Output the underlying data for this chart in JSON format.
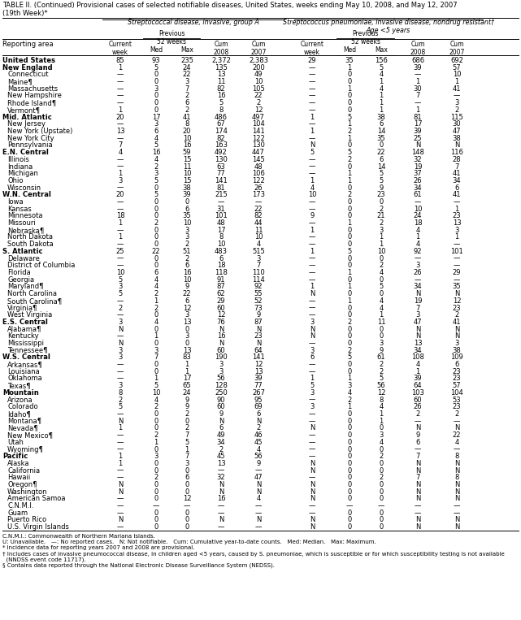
{
  "title": "TABLE II. (Continued) Provisional cases of selected notifiable diseases, United States, weeks ending May 10, 2008, and May 12, 2007\n(19th Week)*",
  "rows": [
    [
      "United States",
      "85",
      "93",
      "235",
      "2,372",
      "2,383",
      "29",
      "35",
      "156",
      "686",
      "692"
    ],
    [
      "New England",
      "1",
      "5",
      "24",
      "135",
      "200",
      "—",
      "1",
      "5",
      "39",
      "57"
    ],
    [
      "Connecticut",
      "—",
      "0",
      "22",
      "13",
      "49",
      "—",
      "0",
      "4",
      "—",
      "10"
    ],
    [
      "Maine¶",
      "—",
      "0",
      "3",
      "11",
      "10",
      "—",
      "0",
      "1",
      "1",
      "1"
    ],
    [
      "Massachusetts",
      "—",
      "3",
      "7",
      "82",
      "105",
      "—",
      "1",
      "4",
      "30",
      "41"
    ],
    [
      "New Hampshire",
      "—",
      "0",
      "2",
      "16",
      "22",
      "—",
      "0",
      "1",
      "7",
      "—"
    ],
    [
      "Rhode Island¶",
      "—",
      "0",
      "6",
      "5",
      "2",
      "—",
      "0",
      "1",
      "—",
      "3"
    ],
    [
      "Vermont¶",
      "1",
      "0",
      "2",
      "8",
      "12",
      "—",
      "0",
      "1",
      "1",
      "2"
    ],
    [
      "Mid. Atlantic",
      "20",
      "17",
      "41",
      "486",
      "497",
      "1",
      "5",
      "38",
      "81",
      "115"
    ],
    [
      "New Jersey",
      "—",
      "3",
      "8",
      "67",
      "104",
      "—",
      "1",
      "6",
      "17",
      "30"
    ],
    [
      "New York (Upstate)",
      "13",
      "6",
      "20",
      "174",
      "141",
      "1",
      "2",
      "14",
      "39",
      "47"
    ],
    [
      "New York City",
      "—",
      "4",
      "10",
      "82",
      "122",
      "—",
      "1",
      "35",
      "25",
      "38"
    ],
    [
      "Pennsylvania",
      "7",
      "5",
      "16",
      "163",
      "130",
      "N",
      "0",
      "0",
      "N",
      "N"
    ],
    [
      "E.N. Central",
      "4",
      "16",
      "59",
      "492",
      "447",
      "5",
      "5",
      "22",
      "148",
      "116"
    ],
    [
      "Illinois",
      "—",
      "4",
      "15",
      "130",
      "145",
      "—",
      "2",
      "6",
      "32",
      "28"
    ],
    [
      "Indiana",
      "—",
      "2",
      "11",
      "63",
      "48",
      "—",
      "0",
      "14",
      "19",
      "7"
    ],
    [
      "Michigan",
      "1",
      "3",
      "10",
      "77",
      "106",
      "—",
      "1",
      "5",
      "37",
      "41"
    ],
    [
      "Ohio",
      "3",
      "5",
      "15",
      "141",
      "122",
      "1",
      "1",
      "5",
      "26",
      "34"
    ],
    [
      "Wisconsin",
      "—",
      "0",
      "38",
      "81",
      "26",
      "4",
      "0",
      "9",
      "34",
      "6"
    ],
    [
      "W.N. Central",
      "20",
      "5",
      "39",
      "215",
      "173",
      "10",
      "2",
      "23",
      "61",
      "41"
    ],
    [
      "Iowa",
      "—",
      "0",
      "0",
      "—",
      "—",
      "—",
      "0",
      "0",
      "—",
      "—"
    ],
    [
      "Kansas",
      "—",
      "0",
      "6",
      "31",
      "22",
      "—",
      "0",
      "2",
      "10",
      "1"
    ],
    [
      "Minnesota",
      "18",
      "0",
      "35",
      "101",
      "82",
      "9",
      "0",
      "21",
      "24",
      "23"
    ],
    [
      "Missouri",
      "1",
      "2",
      "10",
      "48",
      "44",
      "—",
      "1",
      "2",
      "18",
      "13"
    ],
    [
      "Nebraska¶",
      "—",
      "0",
      "3",
      "17",
      "11",
      "1",
      "0",
      "3",
      "4",
      "3"
    ],
    [
      "North Dakota",
      "1",
      "0",
      "3",
      "8",
      "10",
      "—",
      "0",
      "1",
      "1",
      "1"
    ],
    [
      "South Dakota",
      "—",
      "0",
      "2",
      "10",
      "4",
      "—",
      "0",
      "1",
      "4",
      "—"
    ],
    [
      "S. Atlantic",
      "25",
      "22",
      "51",
      "483",
      "515",
      "1",
      "5",
      "10",
      "92",
      "101"
    ],
    [
      "Delaware",
      "—",
      "0",
      "2",
      "6",
      "3",
      "—",
      "0",
      "0",
      "—",
      "—"
    ],
    [
      "District of Columbia",
      "—",
      "0",
      "6",
      "18",
      "7",
      "—",
      "0",
      "2",
      "3",
      "—"
    ],
    [
      "Florida",
      "10",
      "6",
      "16",
      "118",
      "110",
      "—",
      "1",
      "4",
      "26",
      "29"
    ],
    [
      "Georgia",
      "5",
      "4",
      "10",
      "91",
      "114",
      "—",
      "0",
      "0",
      "—",
      "—"
    ],
    [
      "Maryland¶",
      "3",
      "4",
      "9",
      "87",
      "92",
      "1",
      "1",
      "5",
      "34",
      "35"
    ],
    [
      "North Carolina",
      "5",
      "2",
      "22",
      "62",
      "55",
      "N",
      "0",
      "0",
      "N",
      "N"
    ],
    [
      "South Carolina¶",
      "—",
      "1",
      "6",
      "29",
      "52",
      "—",
      "1",
      "4",
      "19",
      "12"
    ],
    [
      "Virginia¶",
      "2",
      "2",
      "12",
      "60",
      "73",
      "—",
      "0",
      "4",
      "7",
      "23"
    ],
    [
      "West Virginia",
      "—",
      "0",
      "3",
      "12",
      "9",
      "—",
      "0",
      "1",
      "3",
      "2"
    ],
    [
      "E.S. Central",
      "3",
      "4",
      "13",
      "76",
      "87",
      "3",
      "2",
      "11",
      "47",
      "41"
    ],
    [
      "Alabama¶",
      "N",
      "0",
      "0",
      "N",
      "N",
      "N",
      "0",
      "0",
      "N",
      "N"
    ],
    [
      "Kentucky",
      "—",
      "1",
      "3",
      "16",
      "23",
      "N",
      "0",
      "0",
      "N",
      "N"
    ],
    [
      "Mississippi",
      "N",
      "0",
      "0",
      "N",
      "N",
      "—",
      "0",
      "3",
      "13",
      "3"
    ],
    [
      "Tennessee¶",
      "3",
      "3",
      "13",
      "60",
      "64",
      "3",
      "2",
      "9",
      "34",
      "38"
    ],
    [
      "W.S. Central",
      "3",
      "7",
      "83",
      "190",
      "141",
      "6",
      "5",
      "61",
      "108",
      "109"
    ],
    [
      "Arkansas¶",
      "—",
      "0",
      "1",
      "3",
      "12",
      "—",
      "0",
      "2",
      "4",
      "6"
    ],
    [
      "Louisiana",
      "—",
      "0",
      "1",
      "3",
      "13",
      "—",
      "0",
      "2",
      "1",
      "23"
    ],
    [
      "Oklahoma",
      "—",
      "1",
      "17",
      "56",
      "39",
      "1",
      "1",
      "5",
      "39",
      "23"
    ],
    [
      "Texas¶",
      "3",
      "5",
      "65",
      "128",
      "77",
      "5",
      "3",
      "56",
      "64",
      "57"
    ],
    [
      "Mountain",
      "8",
      "10",
      "24",
      "250",
      "267",
      "3",
      "4",
      "12",
      "103",
      "104"
    ],
    [
      "Arizona",
      "2",
      "4",
      "9",
      "90",
      "95",
      "—",
      "2",
      "8",
      "60",
      "53"
    ],
    [
      "Colorado",
      "5",
      "2",
      "9",
      "60",
      "69",
      "3",
      "1",
      "4",
      "26",
      "23"
    ],
    [
      "Idaho¶",
      "—",
      "0",
      "2",
      "9",
      "6",
      "—",
      "0",
      "1",
      "2",
      "2"
    ],
    [
      "Montana¶",
      "N",
      "0",
      "0",
      "N",
      "N",
      "—",
      "0",
      "1",
      "—",
      "—"
    ],
    [
      "Nevada¶",
      "1",
      "0",
      "2",
      "6",
      "2",
      "N",
      "0",
      "0",
      "N",
      "N"
    ],
    [
      "New Mexico¶",
      "—",
      "2",
      "7",
      "49",
      "46",
      "—",
      "0",
      "3",
      "9",
      "22"
    ],
    [
      "Utah",
      "—",
      "1",
      "5",
      "34",
      "45",
      "—",
      "0",
      "4",
      "6",
      "4"
    ],
    [
      "Wyoming¶",
      "—",
      "0",
      "1",
      "2",
      "4",
      "—",
      "0",
      "0",
      "—",
      "—"
    ],
    [
      "Pacific",
      "1",
      "3",
      "7",
      "45",
      "56",
      "—",
      "0",
      "2",
      "7",
      "8"
    ],
    [
      "Alaska",
      "1",
      "0",
      "3",
      "13",
      "9",
      "N",
      "0",
      "0",
      "N",
      "N"
    ],
    [
      "California",
      "—",
      "0",
      "0",
      "—",
      "—",
      "N",
      "0",
      "0",
      "N",
      "N"
    ],
    [
      "Hawaii",
      "—",
      "2",
      "6",
      "32",
      "47",
      "—",
      "0",
      "2",
      "7",
      "8"
    ],
    [
      "Oregon¶",
      "N",
      "0",
      "0",
      "N",
      "N",
      "N",
      "0",
      "0",
      "N",
      "N"
    ],
    [
      "Washington",
      "N",
      "0",
      "0",
      "N",
      "N",
      "N",
      "0",
      "0",
      "N",
      "N"
    ],
    [
      "American Samoa",
      "—",
      "0",
      "12",
      "16",
      "4",
      "N",
      "0",
      "0",
      "N",
      "N"
    ],
    [
      "C.N.M.I.",
      "—",
      "—",
      "—",
      "—",
      "—",
      "—",
      "—",
      "—",
      "—",
      "—"
    ],
    [
      "Guam",
      "—",
      "0",
      "0",
      "—",
      "—",
      "—",
      "0",
      "0",
      "—",
      "—"
    ],
    [
      "Puerto Rico",
      "N",
      "0",
      "0",
      "N",
      "N",
      "N",
      "0",
      "0",
      "N",
      "N"
    ],
    [
      "U.S. Virgin Islands",
      "—",
      "0",
      "0",
      "—",
      "—",
      "N",
      "0",
      "0",
      "N",
      "N"
    ]
  ],
  "bold_rows": [
    "United States",
    "New England",
    "Mid. Atlantic",
    "E.N. Central",
    "W.N. Central",
    "S. Atlantic",
    "E.S. Central",
    "W.S. Central",
    "Mountain",
    "Pacific"
  ],
  "footnotes": [
    "C.N.M.I.: Commonwealth of Northern Mariana Islands.",
    "U: Unavailable.   —: No reported cases.   N: Not notifiable.   Cum: Cumulative year-to-date counts.   Med: Median.   Max: Maximum.",
    "* Incidence data for reporting years 2007 and 2008 are provisional.",
    "† Includes cases of invasive pneumococcal disease, in children aged <5 years, caused by S. pneumoniae, which is susceptible or for which susceptibility testing is not available",
    "  (NNDSS event code 11717).",
    "§ Contains data reported through the National Electronic Disease Surveillance System (NEDSS)."
  ]
}
